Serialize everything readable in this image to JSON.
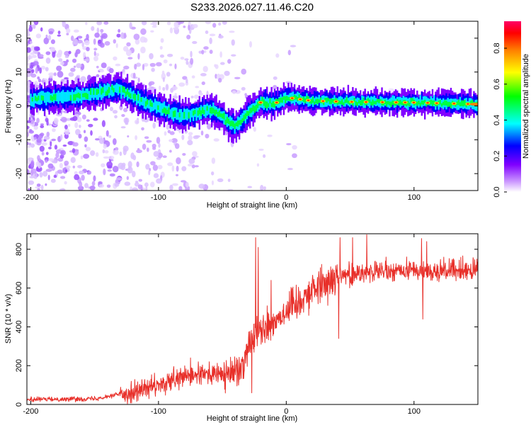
{
  "figure": {
    "title": "S233.2026.027.11.46.C20"
  },
  "chart_data": [
    {
      "type": "heatmap",
      "title": "S233.2026.027.11.46.C20",
      "xlabel": "Height of straight line (km)",
      "ylabel": "Frequency (Hz)",
      "xlim": [
        -203,
        150
      ],
      "ylim": [
        -25,
        25
      ],
      "xticks": [
        -200,
        -100,
        0,
        100
      ],
      "xtick_labels": [
        "-200",
        "-100",
        "0",
        "100"
      ],
      "yticks": [
        -20,
        -10,
        0,
        10,
        20
      ],
      "ytick_labels": [
        "-20",
        "-10",
        "0",
        "10",
        "20"
      ],
      "colorbar": {
        "label": "Normalized spectral amplitude",
        "range": [
          0,
          0.95
        ],
        "ticks": [
          0,
          0.2,
          0.4,
          0.6,
          0.8
        ],
        "tick_labels": [
          "0.0",
          "0.2",
          "0.4",
          "0.6",
          "0.8"
        ],
        "colormap": [
          "#ffffff",
          "#cc99ff",
          "#8000ff",
          "#0000ff",
          "#00ffff",
          "#00ff00",
          "#ffff00",
          "#ff8000",
          "#ff0000",
          "#ff0066"
        ]
      },
      "ridge_frequency": {
        "description": "dominant frequency track (Hz) vs height (km)",
        "x": [
          -200,
          -180,
          -160,
          -140,
          -130,
          -120,
          -110,
          -100,
          -90,
          -80,
          -70,
          -60,
          -50,
          -45,
          -40,
          -35,
          -30,
          -20,
          -10,
          0,
          20,
          50,
          100,
          150
        ],
        "y": [
          2,
          2.5,
          3,
          4.5,
          5,
          3,
          1,
          -0.5,
          -2,
          -3,
          -2,
          -1,
          -3,
          -5,
          -6,
          -4.5,
          -2,
          1,
          0.5,
          2.5,
          1.5,
          1.2,
          1,
          0.5
        ]
      }
    },
    {
      "type": "line",
      "xlabel": "Height of straight line (km)",
      "ylabel": "SNR (10 * v/v)",
      "xlim": [
        -203,
        150
      ],
      "ylim": [
        0,
        880
      ],
      "xticks": [
        -200,
        -100,
        0,
        100
      ],
      "xtick_labels": [
        "-200",
        "-100",
        "0",
        "100"
      ],
      "yticks": [
        0,
        200,
        400,
        600,
        800
      ],
      "ytick_labels": [
        "0",
        "200",
        "400",
        "600",
        "800"
      ],
      "color": "#e8302a",
      "trend": {
        "description": "approximate mean SNR envelope (noise added when drawn)",
        "x": [
          -203,
          -150,
          -125,
          -100,
          -80,
          -60,
          -45,
          -35,
          -28,
          -20,
          -10,
          0,
          10,
          20,
          30,
          40,
          60,
          100,
          150
        ],
        "y": [
          25,
          30,
          60,
          95,
          140,
          160,
          150,
          200,
          330,
          380,
          430,
          480,
          540,
          590,
          630,
          660,
          680,
          690,
          690
        ]
      },
      "spikes": [
        {
          "x": -75,
          "y": 240
        },
        {
          "x": -38,
          "y": 230
        },
        {
          "x": -24,
          "y": 860
        },
        {
          "x": -22,
          "y": 810
        },
        {
          "x": -12,
          "y": 640
        },
        {
          "x": 42,
          "y": 860
        },
        {
          "x": 52,
          "y": 860
        },
        {
          "x": 63,
          "y": 875
        },
        {
          "x": 106,
          "y": 855
        },
        {
          "x": 110,
          "y": 840
        }
      ],
      "dips": [
        {
          "x": -27,
          "y": 60
        },
        {
          "x": 41,
          "y": 340
        },
        {
          "x": 107,
          "y": 440
        }
      ]
    }
  ]
}
